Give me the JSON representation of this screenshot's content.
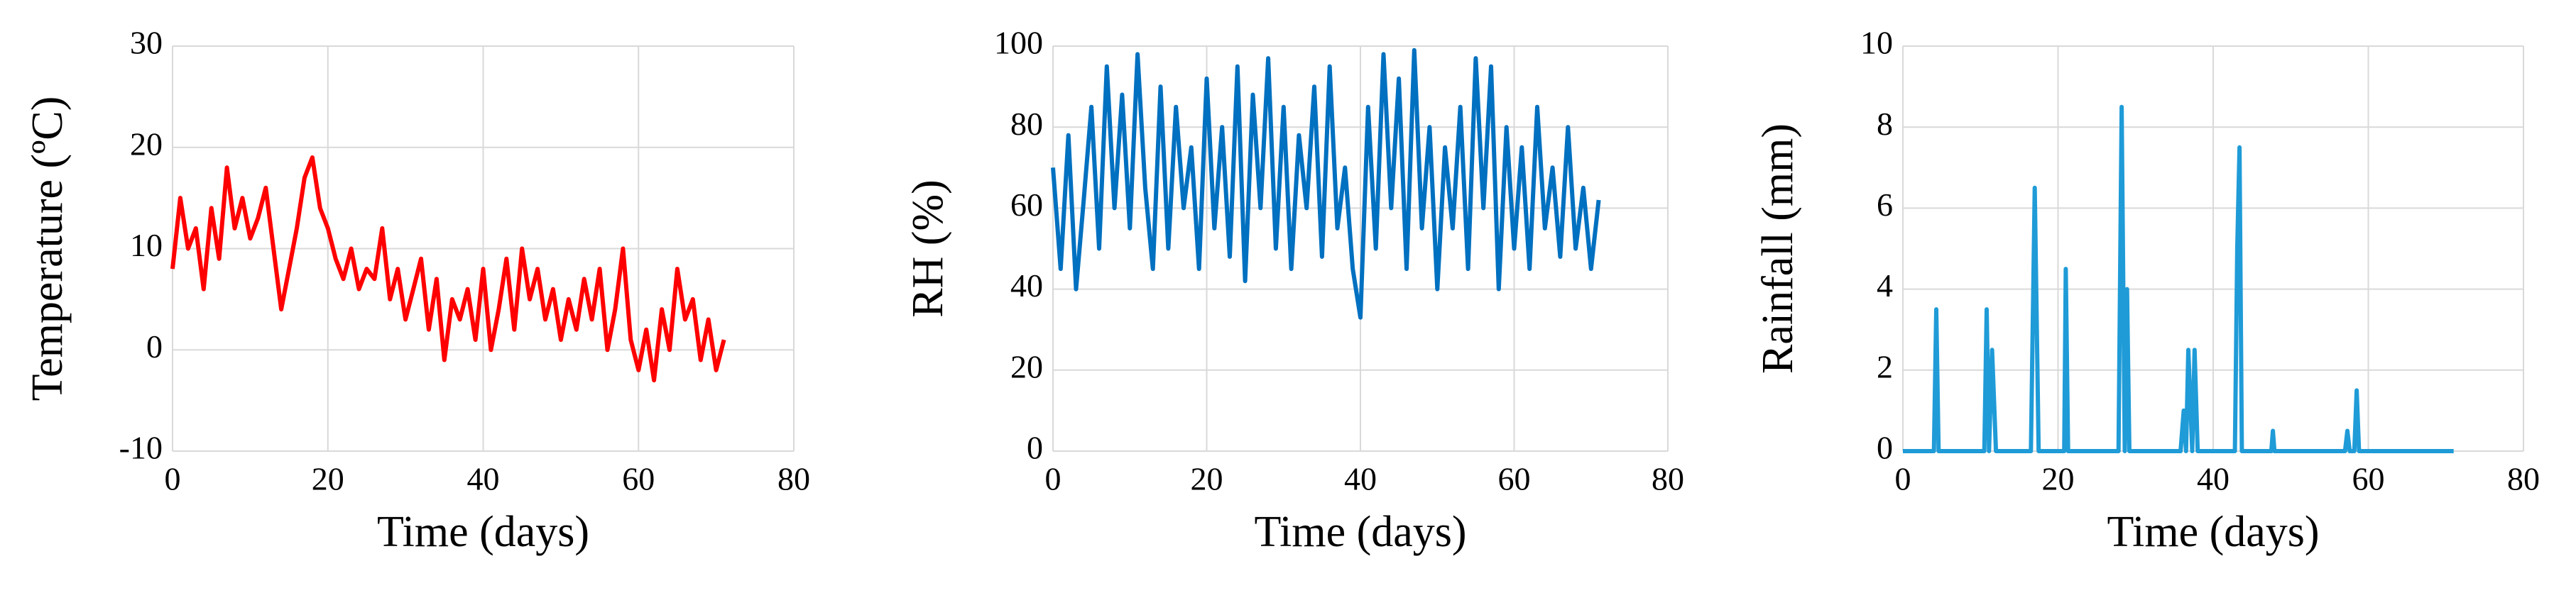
{
  "chart_data": [
    {
      "type": "line",
      "xlabel": "Time (days)",
      "ylabel": "Temperature (ºC)",
      "xlim": [
        0,
        80
      ],
      "xticks": [
        0,
        20,
        40,
        60,
        80
      ],
      "ylim": [
        -10,
        30
      ],
      "yticks": [
        -10,
        0,
        10,
        20,
        30
      ],
      "grid": true,
      "x": [
        0,
        1,
        2,
        3,
        4,
        5,
        6,
        7,
        8,
        9,
        10,
        11,
        12,
        13,
        14,
        15,
        16,
        17,
        18,
        19,
        20,
        21,
        22,
        23,
        24,
        25,
        26,
        27,
        28,
        29,
        30,
        31,
        32,
        33,
        34,
        35,
        36,
        37,
        38,
        39,
        40,
        41,
        42,
        43,
        44,
        45,
        46,
        47,
        48,
        49,
        50,
        51,
        52,
        53,
        54,
        55,
        56,
        57,
        58,
        59,
        60,
        61,
        62,
        63,
        64,
        65,
        66,
        67,
        68,
        69,
        70,
        71
      ],
      "series": [
        {
          "color": "#ff0000",
          "values": [
            8,
            15,
            10,
            12,
            6,
            14,
            9,
            18,
            12,
            15,
            11,
            13,
            16,
            10,
            4,
            8,
            12,
            17,
            19,
            14,
            12,
            9,
            7,
            10,
            6,
            8,
            7,
            12,
            5,
            8,
            3,
            6,
            9,
            2,
            7,
            -1,
            5,
            3,
            6,
            1,
            8,
            0,
            4,
            9,
            2,
            10,
            5,
            8,
            3,
            6,
            1,
            5,
            2,
            7,
            3,
            8,
            0,
            4,
            10,
            1,
            -2,
            2,
            -3,
            4,
            0,
            8,
            3,
            5,
            -1,
            3,
            -2,
            1
          ]
        }
      ]
    },
    {
      "type": "line",
      "xlabel": "Time (days)",
      "ylabel": "RH (%)",
      "xlim": [
        0,
        80
      ],
      "xticks": [
        0,
        20,
        40,
        60,
        80
      ],
      "ylim": [
        0,
        100
      ],
      "yticks": [
        0,
        20,
        40,
        60,
        80,
        100
      ],
      "grid": true,
      "x": [
        0,
        1,
        2,
        3,
        4,
        5,
        6,
        7,
        8,
        9,
        10,
        11,
        12,
        13,
        14,
        15,
        16,
        17,
        18,
        19,
        20,
        21,
        22,
        23,
        24,
        25,
        26,
        27,
        28,
        29,
        30,
        31,
        32,
        33,
        34,
        35,
        36,
        37,
        38,
        39,
        40,
        41,
        42,
        43,
        44,
        45,
        46,
        47,
        48,
        49,
        50,
        51,
        52,
        53,
        54,
        55,
        56,
        57,
        58,
        59,
        60,
        61,
        62,
        63,
        64,
        65,
        66,
        67,
        68,
        69,
        70,
        71
      ],
      "series": [
        {
          "color": "#0070c0",
          "values": [
            70,
            45,
            78,
            40,
            62,
            85,
            50,
            95,
            60,
            88,
            55,
            98,
            65,
            45,
            90,
            50,
            85,
            60,
            75,
            45,
            92,
            55,
            80,
            48,
            95,
            42,
            88,
            60,
            97,
            50,
            85,
            45,
            78,
            60,
            90,
            48,
            95,
            55,
            70,
            45,
            33,
            85,
            50,
            98,
            60,
            92,
            45,
            99,
            55,
            80,
            40,
            75,
            55,
            85,
            45,
            97,
            60,
            95,
            40,
            80,
            50,
            75,
            45,
            85,
            55,
            70,
            48,
            80,
            50,
            65,
            45,
            62
          ]
        }
      ]
    },
    {
      "type": "line",
      "xlabel": "Time (days)",
      "ylabel": "Rainfall (mm)",
      "xlim": [
        0,
        80
      ],
      "xticks": [
        0,
        20,
        40,
        60,
        80
      ],
      "ylim": [
        0,
        10
      ],
      "yticks": [
        0,
        2,
        4,
        6,
        8,
        10
      ],
      "grid": true,
      "x": [
        0,
        4,
        4.3,
        4.6,
        10.5,
        10.8,
        11.1,
        11.5,
        12,
        16.5,
        17,
        17.5,
        20.8,
        21,
        21.3,
        27.8,
        28.2,
        28.6,
        28.9,
        29.2,
        35.8,
        36.2,
        36.5,
        36.8,
        37.3,
        37.6,
        38,
        42.8,
        43.1,
        43.4,
        43.7,
        47.5,
        47.7,
        47.9,
        57,
        57.3,
        57.6,
        58.2,
        58.5,
        58.8,
        71
      ],
      "series": [
        {
          "color": "#1f9bd7",
          "values": [
            0,
            0,
            3.5,
            0,
            0,
            3.5,
            0,
            2.5,
            0,
            0,
            6.5,
            0,
            0,
            4.5,
            0,
            0,
            8.5,
            0,
            4,
            0,
            0,
            1,
            0,
            2.5,
            0,
            2.5,
            0,
            0,
            5,
            7.5,
            0,
            0,
            0.5,
            0,
            0,
            0.5,
            0,
            0,
            1.5,
            0,
            0
          ]
        }
      ]
    }
  ]
}
